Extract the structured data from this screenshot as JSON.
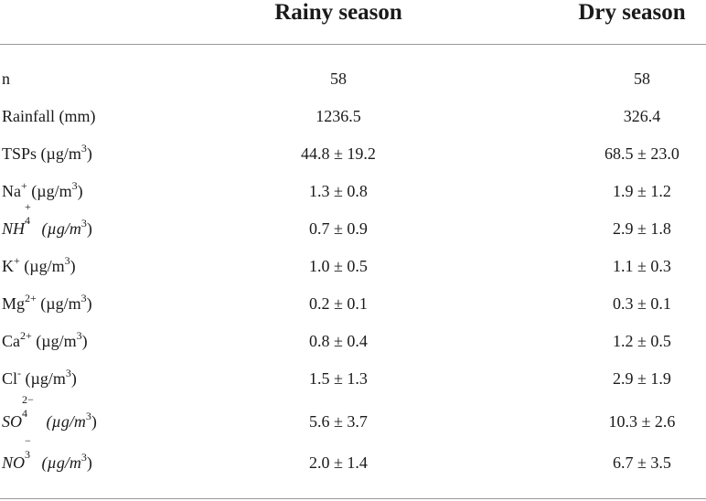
{
  "headers": {
    "rainy": "Rainy season",
    "dry": "Dry season"
  },
  "rows": [
    {
      "label": "n",
      "rainy": "58",
      "dry": "58"
    },
    {
      "label": "Rainfall (mm)",
      "rainy": "1236.5",
      "dry": "326.4"
    },
    {
      "label": "TSPs (µg/m",
      "sup": "3",
      "tail": ")",
      "rainy": "44.8 ± 19.2",
      "dry": "68.5 ± 23.0"
    },
    {
      "label": "Na",
      "sup": "+",
      "tail": " (µg/m",
      "sup2": "3",
      "tail2": ")",
      "rainy": "1.3 ± 0.8",
      "dry": "1.9 ± 1.2"
    },
    {
      "label": "NH",
      "sup": "+",
      "sub": "4",
      "tail": " (µg/m",
      "sup2": "3",
      "tail2": ")",
      "rainy": "0.7 ± 0.9",
      "dry": "2.9 ± 1.8"
    },
    {
      "label": "K",
      "sup": "+",
      "tail": " (µg/m",
      "sup2": "3",
      "tail2": ")",
      "rainy": "1.0 ± 0.5",
      "dry": "1.1 ± 0.3"
    },
    {
      "label": "Mg",
      "sup": "2+",
      "tail": " (µg/m",
      "sup2": "3",
      "tail2": ")",
      "rainy": "0.2 ± 0.1",
      "dry": "0.3 ± 0.1"
    },
    {
      "label": "Ca",
      "sup": "2+",
      "tail": " (µg/m",
      "sup2": "3",
      "tail2": ")",
      "rainy": "0.8 ± 0.4",
      "dry": "1.2 ± 0.5"
    },
    {
      "label": "Cl",
      "sup": "-",
      "tail": " (µg/m",
      "sup2": "3",
      "tail2": ")",
      "rainy": "1.5 ± 1.3",
      "dry": "2.9 ± 1.9"
    },
    {
      "label": "SO",
      "sup": "2−",
      "sub": "4",
      "tail": " (µg/m",
      "sup2": "3",
      "tail2": ")",
      "rainy": "5.6 ± 3.7",
      "dry": "10.3 ± 2.6"
    },
    {
      "label": "NO",
      "sup": "−",
      "sub": "3",
      "tail": " (µg/m",
      "sup2": "3",
      "tail2": ")",
      "rainy": "2.0 ± 1.4",
      "dry": "6.7 ± 3.5"
    }
  ]
}
